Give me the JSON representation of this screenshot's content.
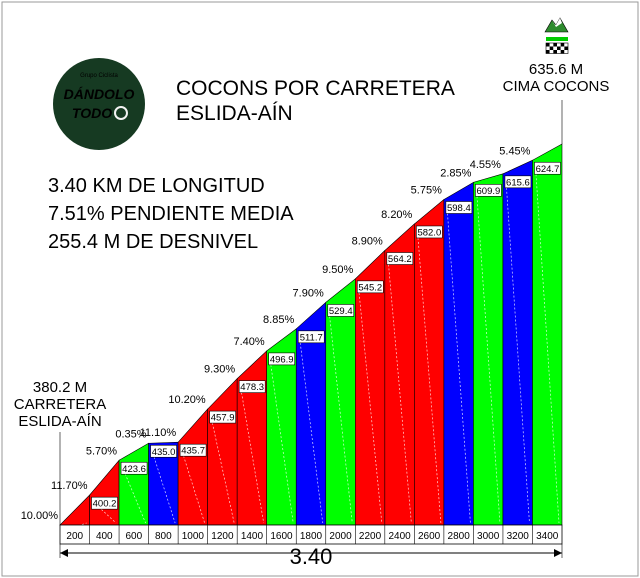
{
  "logo": {
    "line1": "DÁNDOLO",
    "line2": "TODO",
    "tiny": "Grupo Ciclista",
    "bg_color": "#163a22",
    "text_color": "#f2f2f2"
  },
  "header": {
    "title_line1": "COCONS POR CARRETERA",
    "title_line2": "ESLIDA-AÍN"
  },
  "stats": {
    "length": "3.40 KM DE LONGITUD",
    "gradient": "7.51% PENDIENTE MEDIA",
    "elevation": "255.4 M DE DESNIVEL"
  },
  "start": {
    "altitude": "380.2 M",
    "name_line1": "CARRETERA",
    "name_line2": "ESLIDA-AÍN"
  },
  "summit": {
    "altitude": "635.6 M",
    "name": "CIMA COCONS",
    "icon": "mountain-flag-icon"
  },
  "total_distance": "3.40",
  "colors": {
    "red": "#ff0000",
    "green": "#00ff00",
    "blue": "#0000ff"
  },
  "chart_data": {
    "type": "area",
    "title": "COCONS POR CARRETERA ESLIDA-AÍN",
    "xlabel": "3.40",
    "ylabel": "",
    "x_ticks": [
      "200",
      "400",
      "600",
      "800",
      "1000",
      "1200",
      "1400",
      "1600",
      "1800",
      "2000",
      "2200",
      "2400",
      "2600",
      "2800",
      "3000",
      "3200",
      "3400"
    ],
    "start_altitude": 380.2,
    "segments": [
      {
        "end_m": 200,
        "gradient": "10.00%",
        "altitude": null,
        "color": "red"
      },
      {
        "end_m": 400,
        "gradient": "11.70%",
        "altitude": "400.2",
        "color": "red"
      },
      {
        "end_m": 600,
        "gradient": "5.70%",
        "altitude": "423.6",
        "color": "green"
      },
      {
        "end_m": 800,
        "gradient": "0.35%",
        "altitude": "435.0",
        "color": "blue"
      },
      {
        "end_m": 1000,
        "gradient": "11.10%",
        "altitude": "435.7",
        "color": "red"
      },
      {
        "end_m": 1200,
        "gradient": "10.20%",
        "altitude": "457.9",
        "color": "red"
      },
      {
        "end_m": 1400,
        "gradient": "9.30%",
        "altitude": "478.3",
        "color": "red"
      },
      {
        "end_m": 1600,
        "gradient": "7.40%",
        "altitude": "496.9",
        "color": "green"
      },
      {
        "end_m": 1800,
        "gradient": "8.85%",
        "altitude": "511.7",
        "color": "blue"
      },
      {
        "end_m": 2000,
        "gradient": "7.90%",
        "altitude": "529.4",
        "color": "green"
      },
      {
        "end_m": 2200,
        "gradient": "9.50%",
        "altitude": "545.2",
        "color": "red"
      },
      {
        "end_m": 2400,
        "gradient": "8.90%",
        "altitude": "564.2",
        "color": "red"
      },
      {
        "end_m": 2600,
        "gradient": "8.20%",
        "altitude": "582.0",
        "color": "red"
      },
      {
        "end_m": 2800,
        "gradient": "5.75%",
        "altitude": "598.4",
        "color": "blue"
      },
      {
        "end_m": 3000,
        "gradient": "2.85%",
        "altitude": "609.9",
        "color": "green"
      },
      {
        "end_m": 3200,
        "gradient": "4.55%",
        "altitude": "615.6",
        "color": "blue"
      },
      {
        "end_m": 3400,
        "gradient": "5.45%",
        "altitude": "624.7",
        "color": "green"
      }
    ],
    "end_altitude": 635.6,
    "gradient_label_positions": "above-left-of-segment",
    "altitude_label_positions": "at-segment-start"
  }
}
